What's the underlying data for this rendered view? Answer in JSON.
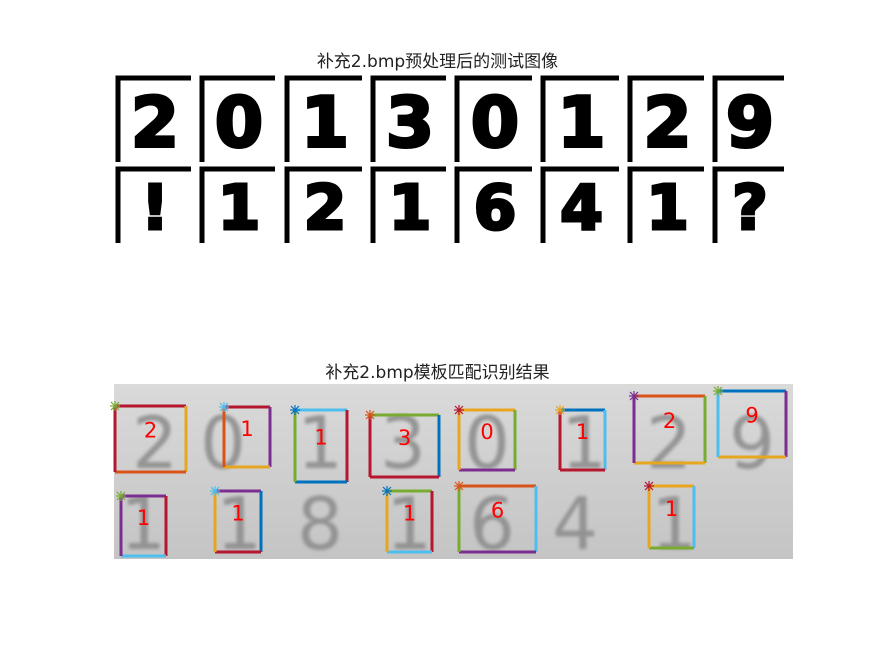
{
  "figure": {
    "top_title": "补充2.bmp预处理后的测试图像",
    "bottom_title": "补充2.bmp模板匹配识别结果"
  },
  "binary_cells": {
    "row1": [
      "2",
      "0",
      "1",
      "3",
      "0",
      "1",
      "2",
      "9"
    ],
    "row2": [
      "!",
      "1",
      "2",
      "1",
      "6",
      "4",
      "1",
      "?"
    ]
  },
  "recognized": {
    "row1": [
      "2",
      "1",
      "1",
      "3",
      "0",
      "1",
      "2",
      "9"
    ],
    "row2": [
      "1",
      "1",
      "1",
      "6",
      "1"
    ]
  },
  "photo_digits": {
    "row1": [
      "2",
      "0",
      "1",
      "3",
      "0",
      "1",
      "2",
      "9"
    ],
    "row2": [
      "1",
      "1",
      "8",
      "1",
      "6",
      "4",
      "1"
    ]
  },
  "colors": {
    "label": "#ff0000",
    "box_colors": [
      "#b5172f",
      "#e8a51f",
      "#7b2e8f",
      "#77ac30",
      "#4dbeee",
      "#0072bd",
      "#d95319"
    ]
  }
}
